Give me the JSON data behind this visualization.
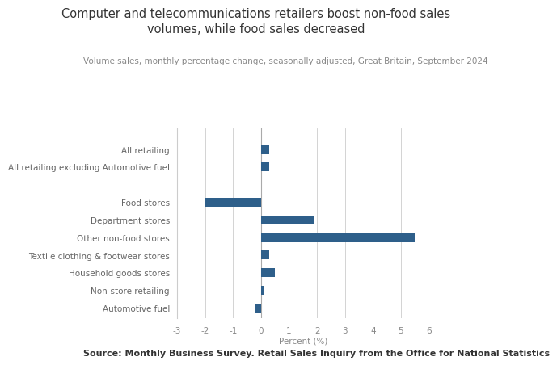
{
  "title": "Computer and telecommunications retailers boost non-food sales\nvolumes, while food sales decreased",
  "subtitle": "Volume sales, monthly percentage change, seasonally adjusted, Great Britain, September 2024",
  "source": "Source: Monthly Business Survey. Retail Sales Inquiry from the Office for National Statistics",
  "categories": [
    "Automotive fuel",
    "Non-store retailing",
    "Household goods stores",
    "Textile clothing & footwear stores",
    "Other non-food stores",
    "Department stores",
    "Food stores",
    "All retailing excluding Automotive fuel",
    "All retailing"
  ],
  "values": [
    -0.2,
    0.1,
    0.5,
    0.3,
    5.5,
    1.9,
    -2.0,
    0.3,
    0.3
  ],
  "y_positions": [
    0,
    1,
    2,
    3,
    4,
    5,
    6,
    8,
    9
  ],
  "bar_color": "#2e5f8a",
  "xlim": [
    -3,
    6
  ],
  "xticks": [
    -3,
    -2,
    -1,
    0,
    1,
    2,
    3,
    4,
    5,
    6
  ],
  "ylim": [
    -0.6,
    10.2
  ],
  "xlabel": "Percent (%)",
  "title_fontsize": 10.5,
  "subtitle_fontsize": 7.5,
  "label_fontsize": 7.5,
  "tick_fontsize": 7.5,
  "source_fontsize": 8,
  "bar_height": 0.5,
  "title_color": "#333333",
  "subtitle_color": "#888888",
  "label_color": "#666666",
  "tick_color": "#888888",
  "grid_color": "#cccccc",
  "zero_line_color": "#aaaaaa",
  "left_spine_color": "#cccccc",
  "background_color": "#ffffff"
}
